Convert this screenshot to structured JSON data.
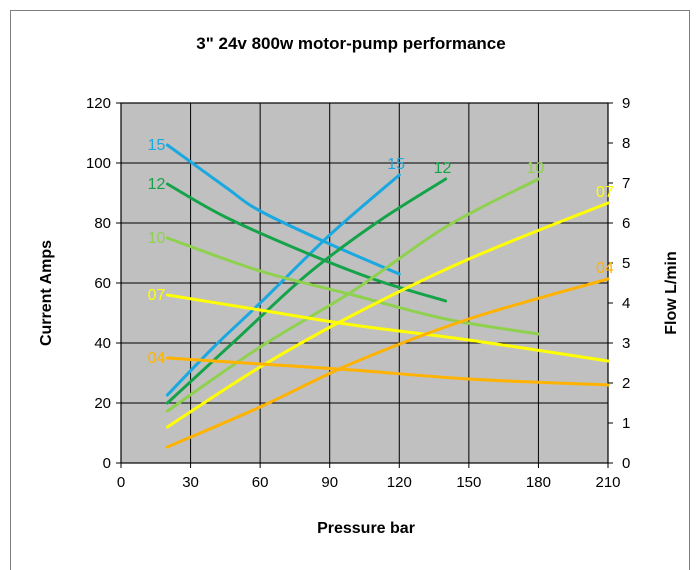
{
  "chart_data": {
    "type": "line",
    "title": "3\" 24v 800w motor-pump performance",
    "xlabel": "Pressure bar",
    "ylabel": "Current Amps",
    "y2label": "Flow L/min",
    "xlim": [
      0,
      210
    ],
    "ylim": [
      0,
      120
    ],
    "y2lim": [
      0,
      9
    ],
    "xticks": [
      "0",
      "30",
      "60",
      "90",
      "120",
      "150",
      "180",
      "210"
    ],
    "yticks": [
      "0",
      "20",
      "40",
      "60",
      "80",
      "100",
      "120"
    ],
    "y2ticks": [
      "0",
      "1",
      "2",
      "3",
      "4",
      "5",
      "6",
      "7",
      "8",
      "9"
    ],
    "grid": true,
    "plot_background": "#c0c0c0",
    "series": [
      {
        "name": "15",
        "axis": "left",
        "color": "#1aa8e0",
        "x": [
          20,
          45,
          60,
          90,
          120
        ],
        "y": [
          106,
          92,
          84,
          73,
          63
        ]
      },
      {
        "name": "15",
        "axis": "right",
        "color": "#1aa8e0",
        "x": [
          20,
          40,
          60,
          90,
          120
        ],
        "y": [
          1.7,
          2.9,
          4.0,
          5.7,
          7.2
        ]
      },
      {
        "name": "12",
        "axis": "left",
        "color": "#15a34a",
        "x": [
          20,
          45,
          80,
          110,
          140
        ],
        "y": [
          93,
          82,
          70,
          61,
          54
        ]
      },
      {
        "name": "12",
        "axis": "right",
        "color": "#15a34a",
        "x": [
          20,
          50,
          80,
          110,
          140
        ],
        "y": [
          1.5,
          3.1,
          4.7,
          6.0,
          7.1
        ]
      },
      {
        "name": "10",
        "axis": "left",
        "color": "#8fd14f",
        "x": [
          20,
          60,
          100,
          140,
          180
        ],
        "y": [
          75,
          64,
          56,
          48,
          43
        ]
      },
      {
        "name": "10",
        "axis": "right",
        "color": "#8fd14f",
        "x": [
          20,
          60,
          100,
          140,
          180
        ],
        "y": [
          1.3,
          2.9,
          4.3,
          5.9,
          7.1
        ]
      },
      {
        "name": "07",
        "axis": "left",
        "color": "#ffff00",
        "x": [
          20,
          60,
          100,
          150,
          210
        ],
        "y": [
          56,
          51,
          46,
          41,
          34
        ]
      },
      {
        "name": "07",
        "axis": "right",
        "color": "#ffff00",
        "x": [
          20,
          60,
          100,
          150,
          210
        ],
        "y": [
          0.9,
          2.4,
          3.7,
          5.1,
          6.5
        ]
      },
      {
        "name": "04",
        "axis": "left",
        "color": "#ffb300",
        "x": [
          20,
          60,
          100,
          150,
          210
        ],
        "y": [
          35,
          33,
          31,
          28,
          26
        ]
      },
      {
        "name": "04",
        "axis": "right",
        "color": "#ffb300",
        "x": [
          20,
          60,
          100,
          150,
          210
        ],
        "y": [
          0.4,
          1.4,
          2.5,
          3.6,
          4.6
        ]
      }
    ]
  }
}
